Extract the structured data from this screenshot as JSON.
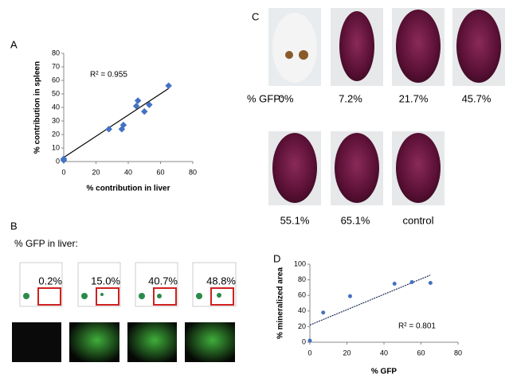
{
  "labels": {
    "a": "A",
    "b": "B",
    "c": "C",
    "d": "D"
  },
  "panel_b": {
    "heading": "% GFP in liver:",
    "percentages": [
      "0.2%",
      "15.0%",
      "40.7%",
      "48.8%"
    ]
  },
  "panel_c": {
    "heading": "% GFP:",
    "row1": [
      "0%",
      "7.2%",
      "21.7%",
      "45.7%"
    ],
    "row2": [
      "55.1%",
      "65.1%",
      "control"
    ]
  },
  "chart_data": [
    {
      "type": "scatter",
      "xlabel": "% contribution in liver",
      "ylabel": "% contribution in spleen",
      "annotation": "R² = 0.955",
      "x": [
        0,
        0,
        28,
        36,
        37,
        45,
        46,
        50,
        53,
        65
      ],
      "values": [
        1,
        2,
        24,
        24,
        27,
        41,
        45,
        37,
        42,
        56
      ],
      "color": "#4472c4",
      "trendline": {
        "x": [
          0,
          65
        ],
        "values": [
          3,
          54
        ],
        "color": "#000000"
      },
      "xlim": [
        0,
        80
      ],
      "xticks": [
        0,
        20,
        40,
        60,
        80
      ],
      "ylim": [
        0,
        80
      ],
      "yticks": [
        0,
        10,
        20,
        30,
        40,
        50,
        60,
        70,
        80
      ]
    },
    {
      "type": "scatter",
      "xlabel": "% GFP",
      "ylabel": "% mineralized area",
      "annotation": "R² = 0.801",
      "x": [
        0,
        7.2,
        21.7,
        45.7,
        55.1,
        65.1
      ],
      "values": [
        2,
        38,
        59,
        75,
        77,
        76
      ],
      "color": "#4472c4",
      "trendline": {
        "x": [
          0,
          65
        ],
        "values": [
          22,
          86
        ],
        "color": "#1f2d5a"
      },
      "xlim": [
        0,
        80
      ],
      "xticks": [
        0,
        20,
        40,
        60,
        80
      ],
      "ylim": [
        0,
        100
      ],
      "yticks": [
        0,
        20,
        40,
        60,
        80,
        100
      ]
    }
  ]
}
